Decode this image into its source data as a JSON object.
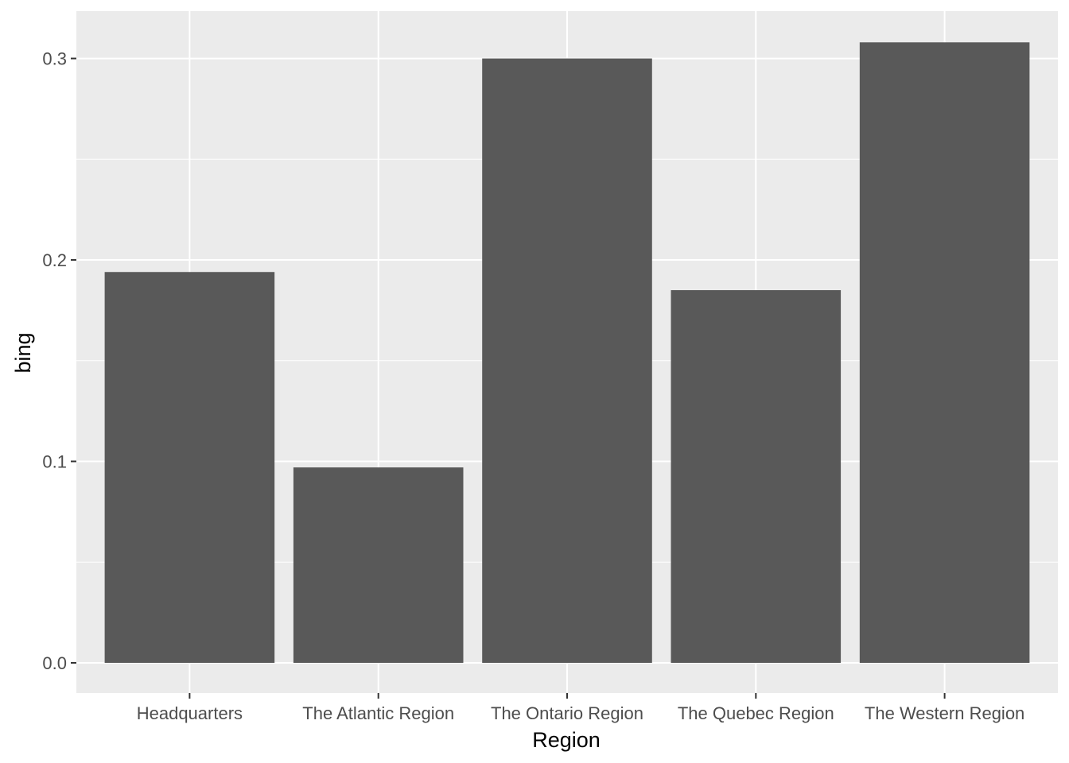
{
  "chart_data": {
    "type": "bar",
    "title": "",
    "xlabel": "Region",
    "ylabel": "bing",
    "categories": [
      "Headquarters",
      "The Atlantic Region",
      "The Ontario Region",
      "The Quebec Region",
      "The Western Region"
    ],
    "values": [
      0.194,
      0.097,
      0.3,
      0.185,
      0.308
    ],
    "ylim": [
      -0.015,
      0.3235
    ],
    "yticks": [
      0.0,
      0.1,
      0.2,
      0.3
    ],
    "ytick_labels": [
      "0.0",
      "0.1",
      "0.2",
      "0.3"
    ],
    "grid": true,
    "legend": "none",
    "colors": {
      "bar": "#595959",
      "panel": "#ebebeb",
      "grid": "#ffffff",
      "tick_text": "#4d4d4d",
      "tick_mark": "#333333"
    }
  }
}
